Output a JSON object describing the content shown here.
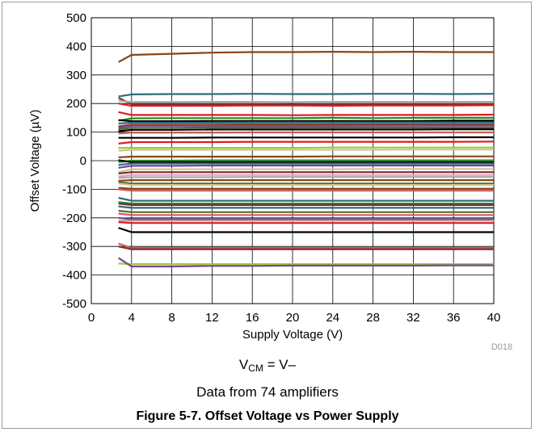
{
  "chart_data": {
    "type": "line",
    "xlabel": "Supply Voltage (V)",
    "ylabel": "Offset Voltage (µV)",
    "xlim": [
      0,
      40
    ],
    "ylim": [
      -500,
      500
    ],
    "xticks": [
      0,
      4,
      8,
      12,
      16,
      20,
      24,
      28,
      32,
      36,
      40
    ],
    "yticks": [
      500,
      400,
      300,
      200,
      100,
      0,
      -100,
      -200,
      -300,
      -400,
      -500
    ],
    "grid": true,
    "legend": "none",
    "figure_code": "D018",
    "x": [
      2.7,
      4,
      8,
      12,
      16,
      20,
      24,
      28,
      32,
      36,
      40
    ],
    "series": [
      {
        "color": "#8B4513",
        "values": [
          345,
          370,
          374,
          378,
          380,
          380,
          381,
          380,
          381,
          380,
          380
        ]
      },
      {
        "color": "#2F6B7A",
        "values": [
          225,
          232,
          233,
          233,
          234,
          233,
          233,
          234,
          234,
          233,
          234
        ]
      },
      {
        "color": "#7A2E2E",
        "values": [
          220,
          198,
          198,
          198,
          198,
          197,
          198,
          198,
          198,
          198,
          198
        ]
      },
      {
        "color": "#E41A1C",
        "values": [
          200,
          192,
          192,
          192,
          193,
          193,
          192,
          193,
          193,
          193,
          194
        ]
      },
      {
        "color": "#A9A9A9",
        "values": [
          210,
          205,
          205,
          206,
          206,
          205,
          206,
          206,
          206,
          206,
          206
        ]
      },
      {
        "color": "#E41A1C",
        "values": [
          170,
          160,
          160,
          160,
          160,
          159,
          160,
          160,
          160,
          160,
          161
        ]
      },
      {
        "color": "#228B22",
        "values": [
          140,
          148,
          149,
          149,
          149,
          149,
          150,
          149,
          150,
          150,
          150
        ]
      },
      {
        "color": "#000000",
        "values": [
          142,
          138,
          138,
          139,
          139,
          139,
          139,
          139,
          139,
          140,
          140
        ]
      },
      {
        "color": "#2F6B7A",
        "values": [
          130,
          133,
          133,
          133,
          134,
          134,
          134,
          134,
          134,
          134,
          134
        ]
      },
      {
        "color": "#8B4513",
        "values": [
          120,
          126,
          126,
          126,
          127,
          127,
          127,
          127,
          127,
          127,
          127
        ]
      },
      {
        "color": "#7B3F9E",
        "values": [
          115,
          122,
          122,
          122,
          122,
          122,
          122,
          123,
          123,
          123,
          123
        ]
      },
      {
        "color": "#556B2F",
        "values": [
          110,
          115,
          115,
          116,
          116,
          116,
          116,
          116,
          116,
          116,
          116
        ]
      },
      {
        "color": "#000000",
        "values": [
          103,
          108,
          108,
          109,
          109,
          109,
          109,
          109,
          109,
          110,
          110
        ]
      },
      {
        "color": "#CD5C5C",
        "values": [
          95,
          98,
          98,
          98,
          99,
          99,
          99,
          99,
          99,
          99,
          99
        ]
      },
      {
        "color": "#000000",
        "values": [
          80,
          80,
          80,
          81,
          81,
          81,
          81,
          81,
          81,
          82,
          82
        ]
      },
      {
        "color": "#E41A1C",
        "values": [
          60,
          65,
          65,
          65,
          66,
          66,
          66,
          66,
          66,
          66,
          67
        ]
      },
      {
        "color": "#9ACD32",
        "values": [
          45,
          45,
          45,
          45,
          45,
          45,
          46,
          46,
          46,
          46,
          46
        ]
      },
      {
        "color": "#C8C896",
        "values": [
          35,
          38,
          38,
          38,
          38,
          38,
          38,
          38,
          39,
          39,
          39
        ]
      },
      {
        "color": "#8B4513",
        "values": [
          12,
          14,
          14,
          14,
          14,
          14,
          15,
          15,
          15,
          15,
          15
        ]
      },
      {
        "color": "#228B22",
        "values": [
          -5,
          0,
          0,
          1,
          1,
          1,
          1,
          1,
          1,
          1,
          1
        ]
      },
      {
        "color": "#000000",
        "values": [
          2,
          -5,
          -5,
          -5,
          -5,
          -5,
          -5,
          -5,
          -5,
          -5,
          -5
        ]
      },
      {
        "color": "#2F6B7A",
        "values": [
          -15,
          -10,
          -10,
          -10,
          -10,
          -10,
          -10,
          -10,
          -10,
          -10,
          -10
        ]
      },
      {
        "color": "#7B3F9E",
        "values": [
          -25,
          -18,
          -18,
          -17,
          -17,
          -17,
          -17,
          -17,
          -17,
          -17,
          -17
        ]
      },
      {
        "color": "#C8C896",
        "values": [
          -40,
          -30,
          -30,
          -30,
          -30,
          -30,
          -30,
          -29,
          -29,
          -29,
          -29
        ]
      },
      {
        "color": "#7A2E2E",
        "values": [
          -45,
          -40,
          -40,
          -40,
          -40,
          -40,
          -40,
          -40,
          -40,
          -40,
          -40
        ]
      },
      {
        "color": "#E6A0C4",
        "values": [
          -55,
          -50,
          -50,
          -50,
          -50,
          -50,
          -50,
          -50,
          -50,
          -50,
          -50
        ]
      },
      {
        "color": "#A9A9A9",
        "values": [
          -60,
          -58,
          -58,
          -58,
          -57,
          -57,
          -57,
          -57,
          -57,
          -57,
          -57
        ]
      },
      {
        "color": "#8B4513",
        "values": [
          -70,
          -68,
          -68,
          -68,
          -68,
          -68,
          -68,
          -68,
          -68,
          -68,
          -68
        ]
      },
      {
        "color": "#556B2F",
        "values": [
          -75,
          -80,
          -80,
          -80,
          -80,
          -80,
          -80,
          -80,
          -80,
          -80,
          -80
        ]
      },
      {
        "color": "#C8C896",
        "values": [
          -80,
          -85,
          -85,
          -85,
          -85,
          -85,
          -85,
          -85,
          -85,
          -85,
          -85
        ]
      },
      {
        "color": "#8B4513",
        "values": [
          -95,
          -98,
          -98,
          -98,
          -98,
          -98,
          -98,
          -98,
          -98,
          -98,
          -98
        ]
      },
      {
        "color": "#CD5C5C",
        "values": [
          -100,
          -105,
          -105,
          -105,
          -105,
          -105,
          -105,
          -105,
          -105,
          -105,
          -105
        ]
      },
      {
        "color": "#2F6B7A",
        "values": [
          -130,
          -140,
          -140,
          -140,
          -140,
          -140,
          -140,
          -140,
          -140,
          -140,
          -140
        ]
      },
      {
        "color": "#228B22",
        "values": [
          -145,
          -150,
          -150,
          -150,
          -150,
          -150,
          -150,
          -150,
          -150,
          -150,
          -150
        ]
      },
      {
        "color": "#7A2E2E",
        "values": [
          -150,
          -155,
          -155,
          -155,
          -155,
          -155,
          -155,
          -155,
          -155,
          -155,
          -155
        ]
      },
      {
        "color": "#2F6B7A",
        "values": [
          -160,
          -165,
          -165,
          -165,
          -165,
          -165,
          -165,
          -165,
          -165,
          -165,
          -165
        ]
      },
      {
        "color": "#556B2F",
        "values": [
          -175,
          -180,
          -180,
          -180,
          -180,
          -180,
          -180,
          -180,
          -180,
          -180,
          -180
        ]
      },
      {
        "color": "#CD5C5C",
        "values": [
          -185,
          -190,
          -190,
          -190,
          -190,
          -190,
          -190,
          -190,
          -190,
          -190,
          -190
        ]
      },
      {
        "color": "#7B3F9E",
        "values": [
          -200,
          -205,
          -205,
          -205,
          -205,
          -205,
          -205,
          -205,
          -205,
          -205,
          -205
        ]
      },
      {
        "color": "#A9A9A9",
        "values": [
          -210,
          -210,
          -210,
          -210,
          -210,
          -210,
          -210,
          -210,
          -210,
          -210,
          -210
        ]
      },
      {
        "color": "#E41A1C",
        "values": [
          -215,
          -218,
          -218,
          -218,
          -218,
          -218,
          -218,
          -218,
          -218,
          -218,
          -218
        ]
      },
      {
        "color": "#000000",
        "values": [
          -235,
          -250,
          -250,
          -250,
          -250,
          -250,
          -250,
          -250,
          -250,
          -250,
          -250
        ]
      },
      {
        "color": "#CD5C5C",
        "values": [
          -290,
          -305,
          -305,
          -305,
          -305,
          -305,
          -305,
          -305,
          -305,
          -305,
          -305
        ]
      },
      {
        "color": "#7A2E2E",
        "values": [
          -300,
          -310,
          -310,
          -310,
          -310,
          -310,
          -310,
          -310,
          -310,
          -310,
          -310
        ]
      },
      {
        "color": "#9ACD32",
        "values": [
          -360,
          -362,
          -362,
          -362,
          -362,
          -362,
          -362,
          -362,
          -362,
          -362,
          -362
        ]
      },
      {
        "color": "#7B3F9E",
        "values": [
          -340,
          -370,
          -370,
          -368,
          -368,
          -367,
          -367,
          -367,
          -367,
          -366,
          -366
        ]
      }
    ]
  },
  "annotation": {
    "vcm_v": "V",
    "vcm_sub": "CM",
    "vcm_rest": " = V–",
    "data_note": "Data from 74 amplifiers"
  },
  "caption": "Figure 5-7. Offset Voltage vs Power Supply"
}
